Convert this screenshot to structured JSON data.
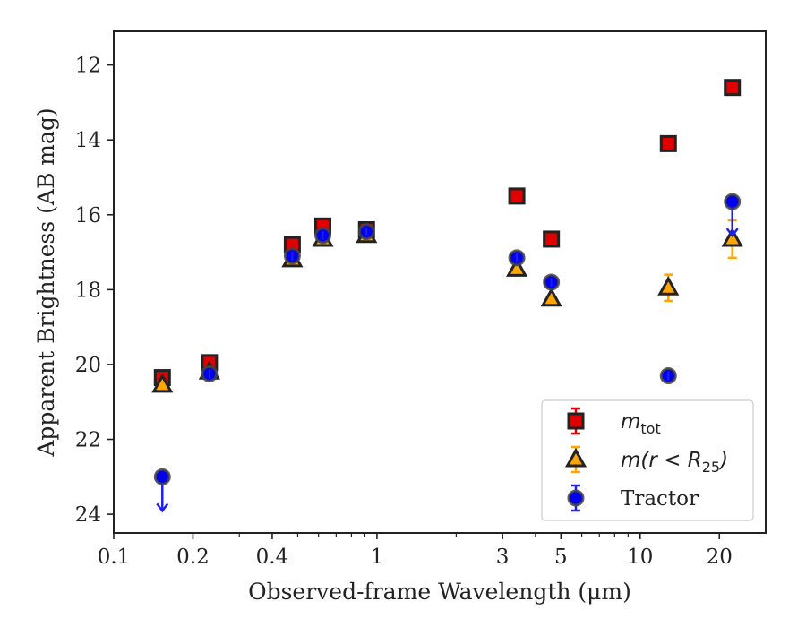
{
  "chart_data": {
    "type": "scatter",
    "title": "",
    "xlabel": "Observed-frame Wavelength (μm)",
    "ylabel": "Apparent Brightness (AB mag)",
    "xscale": "log",
    "xlim": [
      0.1,
      30
    ],
    "ylim": [
      24.5,
      11.1
    ],
    "y_inverted": true,
    "x_ticks": [
      {
        "value": 0.1,
        "label": "0.1"
      },
      {
        "value": 0.2,
        "label": "0.2"
      },
      {
        "value": 0.4,
        "label": "0.4"
      },
      {
        "value": 1,
        "label": "1"
      },
      {
        "value": 3,
        "label": "3"
      },
      {
        "value": 5,
        "label": "5"
      },
      {
        "value": 10,
        "label": "10"
      },
      {
        "value": 20,
        "label": "20"
      }
    ],
    "y_ticks": [
      {
        "value": 12,
        "label": "12"
      },
      {
        "value": 14,
        "label": "14"
      },
      {
        "value": 16,
        "label": "16"
      },
      {
        "value": 18,
        "label": "18"
      },
      {
        "value": 20,
        "label": "20"
      },
      {
        "value": 22,
        "label": "22"
      },
      {
        "value": 24,
        "label": "24"
      }
    ],
    "grid": false,
    "legend_position": "lower-right",
    "series": [
      {
        "name": "m_tot",
        "legend_main": "m",
        "legend_sub": "tot",
        "marker": "square",
        "color": "#e00000",
        "edge": "#222222",
        "errcolor": "#e00000",
        "points": [
          {
            "x": 0.153,
            "y": 20.35,
            "err": 0.1
          },
          {
            "x": 0.231,
            "y": 19.95,
            "err": 0.1
          },
          {
            "x": 0.477,
            "y": 16.8,
            "err": 0.08
          },
          {
            "x": 0.623,
            "y": 16.3,
            "err": 0.08
          },
          {
            "x": 0.913,
            "y": 16.4,
            "err": 0.08
          },
          {
            "x": 3.4,
            "y": 15.5,
            "err": 0.05
          },
          {
            "x": 4.6,
            "y": 16.65,
            "err": 0.05
          },
          {
            "x": 12.8,
            "y": 14.1,
            "err": 0.05
          },
          {
            "x": 22.4,
            "y": 12.6,
            "err": 0.05
          }
        ]
      },
      {
        "name": "m(r < R25)",
        "legend_main": "m(r < R",
        "legend_sub": "25",
        "legend_tail": ")",
        "marker": "triangle",
        "color": "#ffa500",
        "edge": "#222222",
        "errcolor": "#ffa500",
        "points": [
          {
            "x": 0.153,
            "y": 20.55,
            "err": 0.15
          },
          {
            "x": 0.231,
            "y": 20.2,
            "err": 0.08
          },
          {
            "x": 0.477,
            "y": 17.2,
            "err": 0.08
          },
          {
            "x": 0.623,
            "y": 16.65,
            "err": 0.08
          },
          {
            "x": 0.913,
            "y": 16.55,
            "err": 0.08
          },
          {
            "x": 3.4,
            "y": 17.45,
            "err": 0.06
          },
          {
            "x": 4.6,
            "y": 18.25,
            "err": 0.06
          },
          {
            "x": 12.8,
            "y": 17.95,
            "err": 0.35
          },
          {
            "x": 22.4,
            "y": 16.65,
            "err": 0.5
          }
        ]
      },
      {
        "name": "Tractor",
        "legend_main": "Tractor",
        "marker": "circle",
        "color": "#0000ee",
        "edge": "#444444",
        "errcolor": "#2020ee",
        "points": [
          {
            "x": 0.153,
            "y": 23.0,
            "err": 0.0,
            "upper_limit": true
          },
          {
            "x": 0.231,
            "y": 20.25,
            "err": 0.1
          },
          {
            "x": 0.477,
            "y": 17.1,
            "err": 0.08
          },
          {
            "x": 0.623,
            "y": 16.55,
            "err": 0.08
          },
          {
            "x": 0.913,
            "y": 16.45,
            "err": 0.08
          },
          {
            "x": 3.4,
            "y": 17.15,
            "err": 0.05
          },
          {
            "x": 4.6,
            "y": 17.8,
            "err": 0.05
          },
          {
            "x": 12.8,
            "y": 20.3,
            "err": 0.05
          },
          {
            "x": 22.4,
            "y": 15.65,
            "err": 0.0,
            "upper_limit": true
          }
        ]
      }
    ]
  }
}
